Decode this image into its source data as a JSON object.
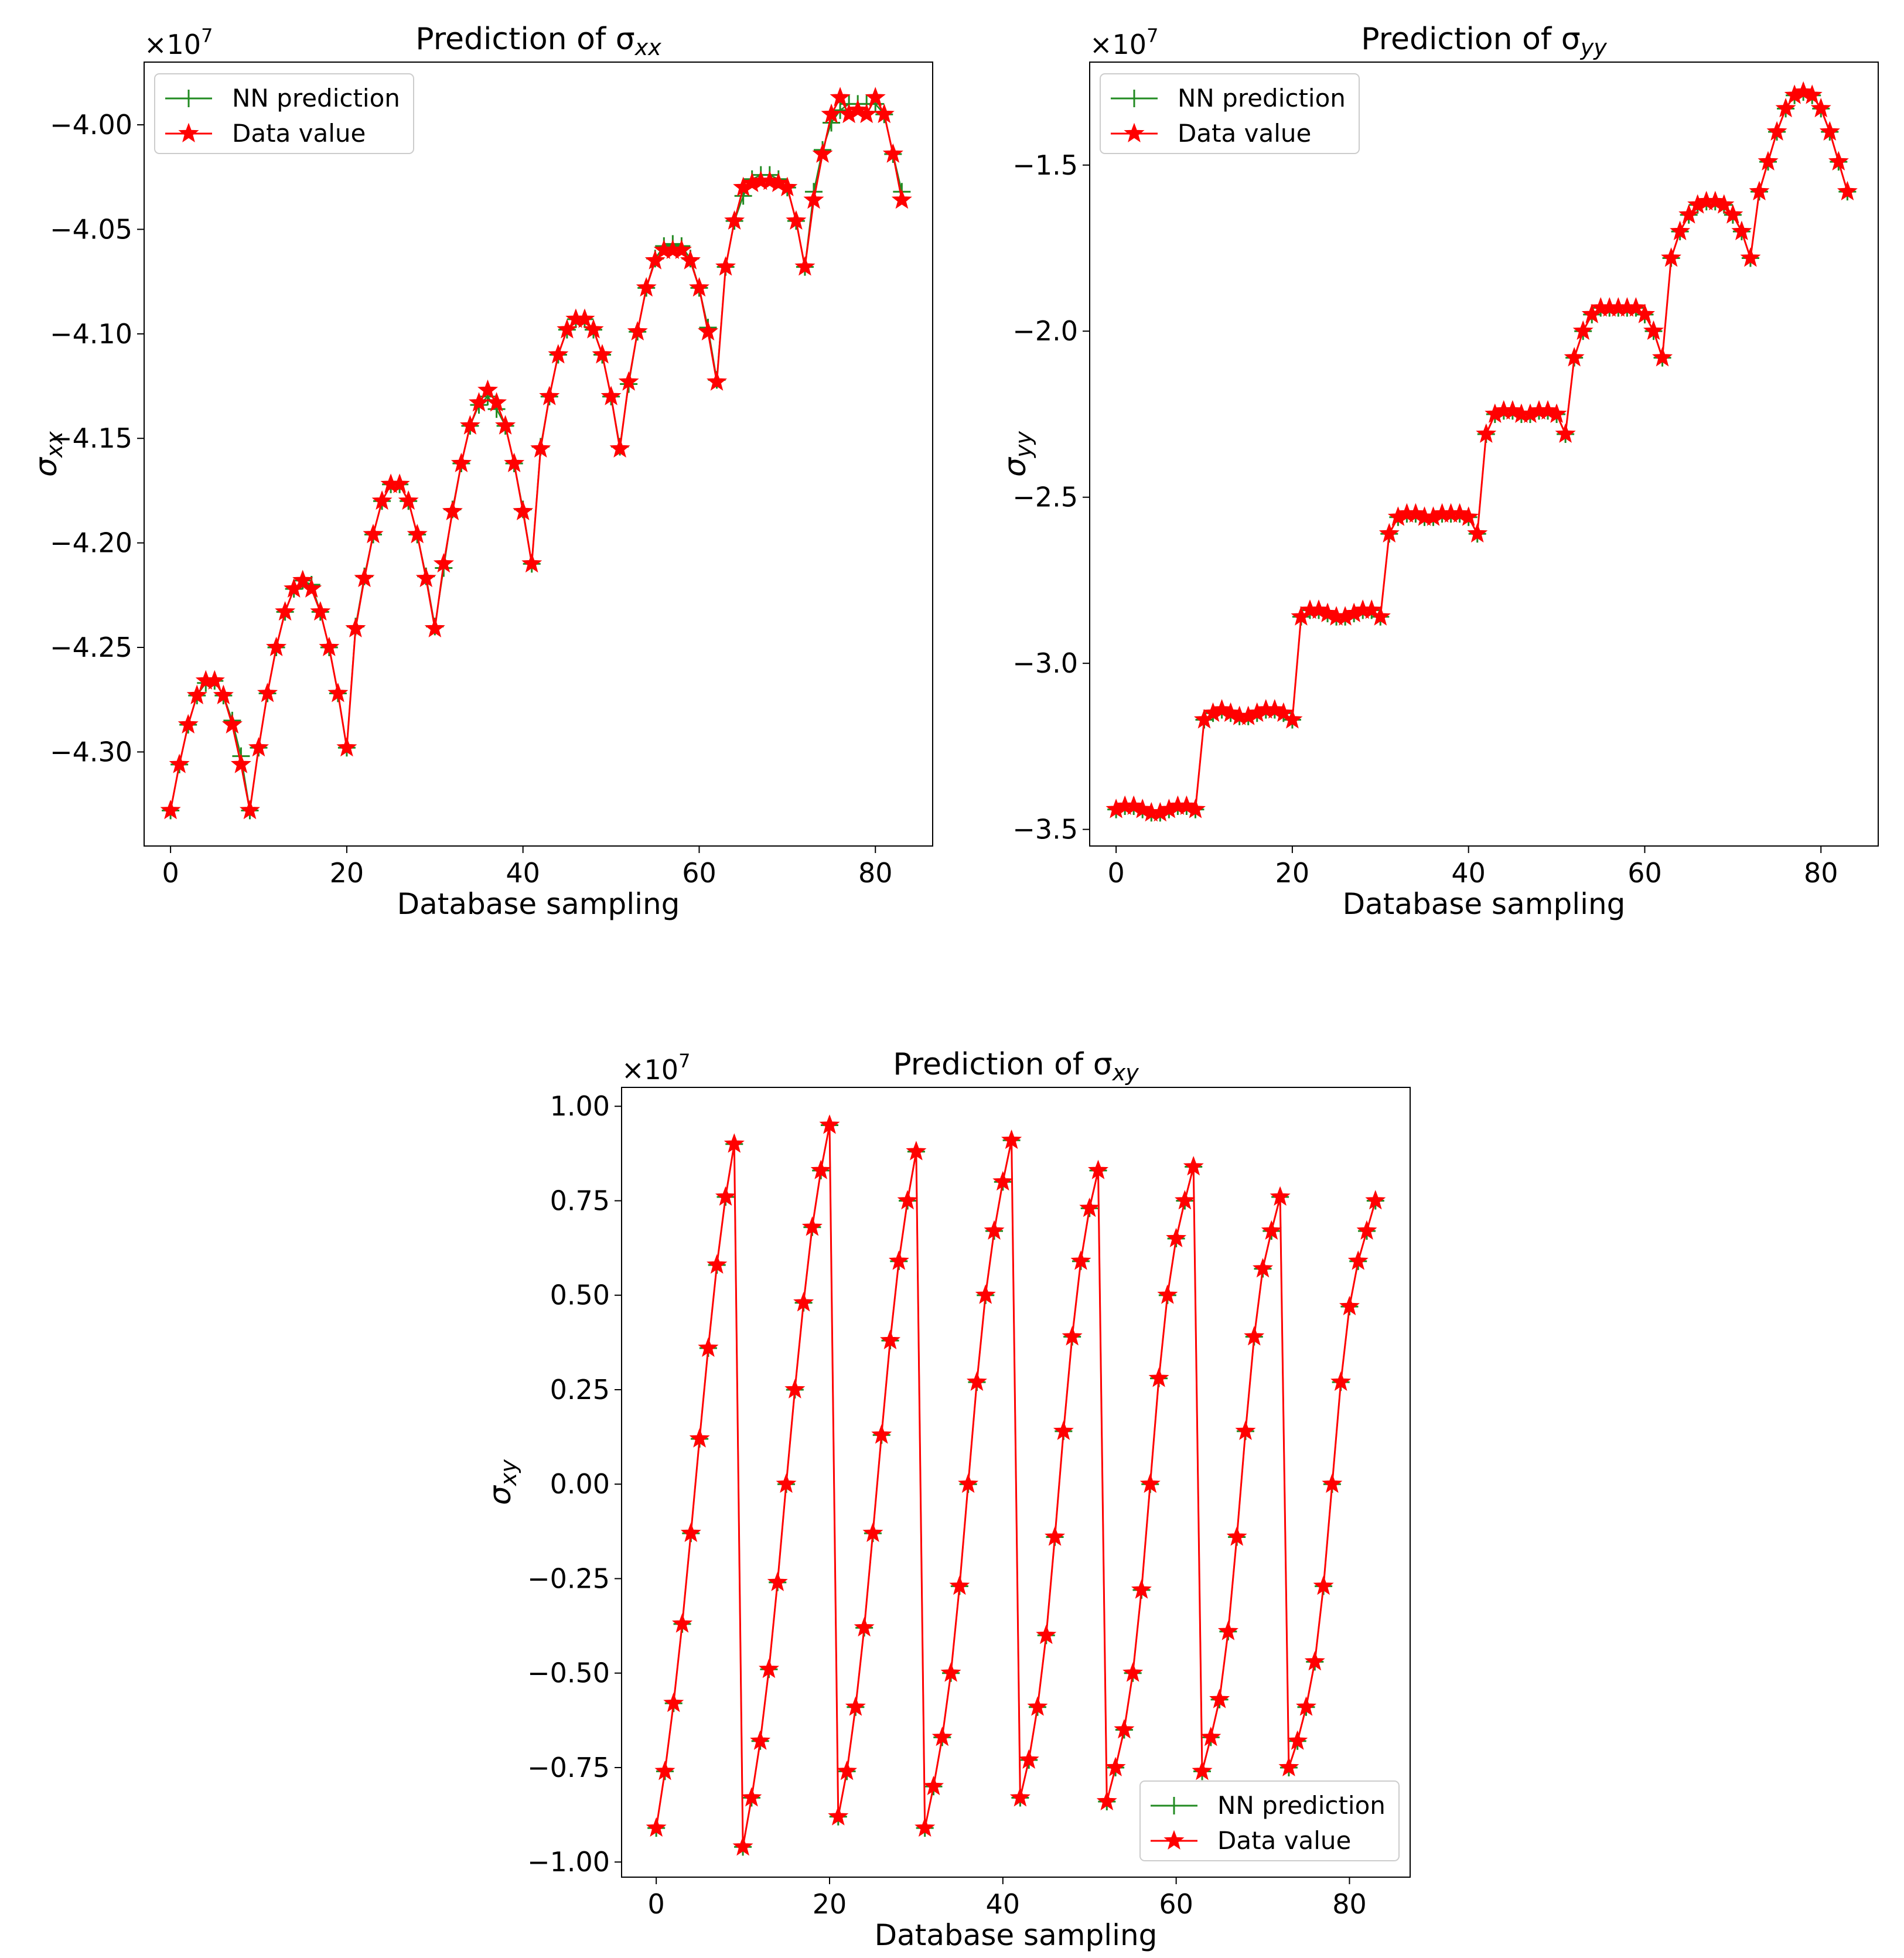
{
  "chart_data": [
    {
      "type": "line",
      "title": "Prediction of σ",
      "title_sub": "xx",
      "ylabel": "σ",
      "ylabel_sub": "xx",
      "xlabel": "Database sampling",
      "offset_text": "×10",
      "offset_exp": "7",
      "xlim": [
        -3,
        86.5
      ],
      "ylim": [
        -43.45,
        -39.7
      ],
      "xticks": [
        0,
        20,
        40,
        60,
        80
      ],
      "xtick_labels": [
        "0",
        "20",
        "40",
        "60",
        "80"
      ],
      "yticks": [
        -43.0,
        -42.5,
        -42.0,
        -41.5,
        -41.0,
        -40.5,
        -40.0
      ],
      "ytick_labels": [
        "−4.30",
        "−4.25",
        "−4.20",
        "−4.15",
        "−4.10",
        "−4.05",
        "−4.00"
      ],
      "legend": "top-left",
      "series": [
        {
          "name": "NN prediction",
          "marker": "plus",
          "color": "#228b22",
          "values": [
            -43.28,
            -43.06,
            -42.87,
            -42.73,
            -42.67,
            -42.66,
            -42.73,
            -42.85,
            -43.02,
            -43.28,
            -42.98,
            -42.72,
            -42.5,
            -42.33,
            -42.22,
            -42.18,
            -42.2,
            -42.33,
            -42.5,
            -42.72,
            -42.98,
            -42.4,
            -42.16,
            -41.96,
            -41.8,
            -41.72,
            -41.72,
            -41.8,
            -41.96,
            -42.16,
            -42.4,
            -42.12,
            -41.84,
            -41.62,
            -41.44,
            -41.34,
            -41.3,
            -41.36,
            -41.44,
            -41.62,
            -41.84,
            -42.1,
            -41.54,
            -41.3,
            -41.1,
            -40.98,
            -40.93,
            -40.93,
            -40.98,
            -41.1,
            -41.3,
            -41.54,
            -41.24,
            -40.99,
            -40.78,
            -40.64,
            -40.58,
            -40.57,
            -40.58,
            -40.64,
            -40.78,
            -40.97,
            -41.22,
            -40.68,
            -40.46,
            -40.34,
            -40.26,
            -40.24,
            -40.24,
            -40.26,
            -40.3,
            -40.46,
            -40.68,
            -40.32,
            -40.12,
            -39.99,
            -39.93,
            -39.9,
            -39.9,
            -39.9,
            -39.9,
            -39.95,
            -40.14,
            -40.32
          ]
        },
        {
          "name": "Data value",
          "marker": "star",
          "color": "#ff0000",
          "values": [
            -43.28,
            -43.06,
            -42.87,
            -42.73,
            -42.66,
            -42.66,
            -42.73,
            -42.87,
            -43.06,
            -43.28,
            -42.98,
            -42.72,
            -42.5,
            -42.33,
            -42.22,
            -42.18,
            -42.22,
            -42.33,
            -42.5,
            -42.72,
            -42.98,
            -42.41,
            -42.17,
            -41.96,
            -41.8,
            -41.72,
            -41.72,
            -41.8,
            -41.96,
            -42.17,
            -42.41,
            -42.1,
            -41.85,
            -41.62,
            -41.44,
            -41.33,
            -41.27,
            -41.33,
            -41.44,
            -41.62,
            -41.85,
            -42.1,
            -41.55,
            -41.3,
            -41.1,
            -40.98,
            -40.93,
            -40.93,
            -40.98,
            -41.1,
            -41.3,
            -41.55,
            -41.23,
            -40.99,
            -40.78,
            -40.65,
            -40.6,
            -40.6,
            -40.6,
            -40.65,
            -40.78,
            -40.99,
            -41.23,
            -40.68,
            -40.46,
            -40.3,
            -40.28,
            -40.27,
            -40.27,
            -40.28,
            -40.3,
            -40.46,
            -40.68,
            -40.36,
            -40.14,
            -39.95,
            -39.87,
            -39.95,
            -39.93,
            -39.95,
            -39.87,
            -39.95,
            -40.14,
            -40.36
          ]
        }
      ]
    },
    {
      "type": "line",
      "title": "Prediction of σ",
      "title_sub": "yy",
      "ylabel": "σ",
      "ylabel_sub": "yy",
      "xlabel": "Database sampling",
      "offset_text": "×10",
      "offset_exp": "7",
      "xlim": [
        -3,
        86.5
      ],
      "ylim": [
        -3.55,
        -1.19
      ],
      "xticks": [
        0,
        20,
        40,
        60,
        80
      ],
      "xtick_labels": [
        "0",
        "20",
        "40",
        "60",
        "80"
      ],
      "yticks": [
        -3.5,
        -3.0,
        -2.5,
        -2.0,
        -1.5
      ],
      "ytick_labels": [
        "−3.5",
        "−3.0",
        "−2.5",
        "−2.0",
        "−1.5"
      ],
      "legend": "top-left",
      "series": [
        {
          "name": "NN prediction",
          "marker": "plus",
          "color": "#228b22",
          "values": [
            -3.44,
            -3.43,
            -3.43,
            -3.44,
            -3.45,
            -3.45,
            -3.44,
            -3.43,
            -3.43,
            -3.44,
            -3.17,
            -3.15,
            -3.14,
            -3.15,
            -3.16,
            -3.16,
            -3.15,
            -3.14,
            -3.14,
            -3.15,
            -3.17,
            -2.86,
            -2.84,
            -2.84,
            -2.85,
            -2.86,
            -2.86,
            -2.85,
            -2.84,
            -2.84,
            -2.86,
            -2.61,
            -2.56,
            -2.55,
            -2.55,
            -2.56,
            -2.56,
            -2.55,
            -2.55,
            -2.55,
            -2.56,
            -2.61,
            -2.31,
            -2.25,
            -2.24,
            -2.24,
            -2.25,
            -2.25,
            -2.24,
            -2.24,
            -2.25,
            -2.31,
            -2.08,
            -2.0,
            -1.95,
            -1.93,
            -1.93,
            -1.93,
            -1.93,
            -1.93,
            -1.95,
            -2.0,
            -2.08,
            -1.78,
            -1.7,
            -1.65,
            -1.62,
            -1.61,
            -1.61,
            -1.62,
            -1.65,
            -1.7,
            -1.78,
            -1.58,
            -1.49,
            -1.4,
            -1.33,
            -1.29,
            -1.28,
            -1.29,
            -1.33,
            -1.4,
            -1.49,
            -1.58
          ]
        },
        {
          "name": "Data value",
          "marker": "star",
          "color": "#ff0000",
          "values": [
            -3.44,
            -3.43,
            -3.43,
            -3.44,
            -3.45,
            -3.45,
            -3.44,
            -3.43,
            -3.43,
            -3.44,
            -3.17,
            -3.15,
            -3.14,
            -3.15,
            -3.16,
            -3.16,
            -3.15,
            -3.14,
            -3.14,
            -3.15,
            -3.17,
            -2.86,
            -2.84,
            -2.84,
            -2.85,
            -2.86,
            -2.86,
            -2.85,
            -2.84,
            -2.84,
            -2.86,
            -2.61,
            -2.56,
            -2.55,
            -2.55,
            -2.56,
            -2.56,
            -2.55,
            -2.55,
            -2.55,
            -2.56,
            -2.61,
            -2.31,
            -2.25,
            -2.24,
            -2.24,
            -2.25,
            -2.25,
            -2.24,
            -2.24,
            -2.25,
            -2.31,
            -2.08,
            -2.0,
            -1.95,
            -1.93,
            -1.93,
            -1.93,
            -1.93,
            -1.93,
            -1.95,
            -2.0,
            -2.08,
            -1.78,
            -1.7,
            -1.65,
            -1.62,
            -1.61,
            -1.61,
            -1.62,
            -1.65,
            -1.7,
            -1.78,
            -1.58,
            -1.49,
            -1.4,
            -1.33,
            -1.29,
            -1.28,
            -1.29,
            -1.33,
            -1.4,
            -1.49,
            -1.58
          ]
        }
      ]
    },
    {
      "type": "line",
      "title": "Prediction of σ",
      "title_sub": "xy",
      "ylabel": "σ",
      "ylabel_sub": "xy",
      "xlabel": "Database sampling",
      "offset_text": "×10",
      "offset_exp": "7",
      "xlim": [
        -4,
        87
      ],
      "ylim": [
        -1.04,
        1.05
      ],
      "xticks": [
        0,
        20,
        40,
        60,
        80
      ],
      "xtick_labels": [
        "0",
        "20",
        "40",
        "60",
        "80"
      ],
      "yticks": [
        -1.0,
        -0.75,
        -0.5,
        -0.25,
        0.0,
        0.25,
        0.5,
        0.75,
        1.0
      ],
      "ytick_labels": [
        "−1.00",
        "−0.75",
        "−0.50",
        "−0.25",
        "0.00",
        "0.25",
        "0.50",
        "0.75",
        "1.00"
      ],
      "legend": "bottom-right",
      "series": [
        {
          "name": "NN prediction",
          "marker": "plus",
          "color": "#228b22",
          "values": [
            -0.91,
            -0.76,
            -0.58,
            -0.37,
            -0.13,
            0.12,
            0.36,
            0.58,
            0.76,
            0.9,
            -0.96,
            -0.83,
            -0.68,
            -0.49,
            -0.26,
            0.0,
            0.25,
            0.48,
            0.68,
            0.83,
            0.95,
            -0.88,
            -0.76,
            -0.59,
            -0.38,
            -0.13,
            0.13,
            0.38,
            0.59,
            0.75,
            0.88,
            -0.91,
            -0.8,
            -0.67,
            -0.5,
            -0.27,
            0.0,
            0.27,
            0.5,
            0.67,
            0.8,
            0.91,
            -0.83,
            -0.73,
            -0.59,
            -0.4,
            -0.14,
            0.14,
            0.39,
            0.59,
            0.73,
            0.83,
            -0.84,
            -0.75,
            -0.65,
            -0.5,
            -0.28,
            0.0,
            0.28,
            0.5,
            0.65,
            0.75,
            0.84,
            -0.76,
            -0.67,
            -0.57,
            -0.39,
            -0.14,
            0.14,
            0.39,
            0.57,
            0.67,
            0.76,
            -0.75,
            -0.68,
            -0.59,
            -0.47,
            -0.27,
            0.0,
            0.27,
            0.47,
            0.59,
            0.67,
            0.75
          ]
        },
        {
          "name": "Data value",
          "marker": "star",
          "color": "#ff0000",
          "values": [
            -0.91,
            -0.76,
            -0.58,
            -0.37,
            -0.13,
            0.12,
            0.36,
            0.58,
            0.76,
            0.9,
            -0.96,
            -0.83,
            -0.68,
            -0.49,
            -0.26,
            0.0,
            0.25,
            0.48,
            0.68,
            0.83,
            0.95,
            -0.88,
            -0.76,
            -0.59,
            -0.38,
            -0.13,
            0.13,
            0.38,
            0.59,
            0.75,
            0.88,
            -0.91,
            -0.8,
            -0.67,
            -0.5,
            -0.27,
            0.0,
            0.27,
            0.5,
            0.67,
            0.8,
            0.91,
            -0.83,
            -0.73,
            -0.59,
            -0.4,
            -0.14,
            0.14,
            0.39,
            0.59,
            0.73,
            0.83,
            -0.84,
            -0.75,
            -0.65,
            -0.5,
            -0.28,
            0.0,
            0.28,
            0.5,
            0.65,
            0.75,
            0.84,
            -0.76,
            -0.67,
            -0.57,
            -0.39,
            -0.14,
            0.14,
            0.39,
            0.57,
            0.67,
            0.76,
            -0.75,
            -0.68,
            -0.59,
            -0.47,
            -0.27,
            0.0,
            0.27,
            0.47,
            0.59,
            0.67,
            0.75
          ]
        }
      ]
    }
  ]
}
